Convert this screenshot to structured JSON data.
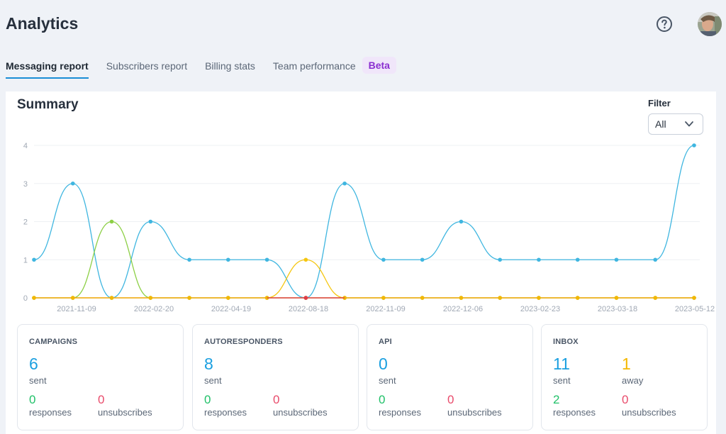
{
  "header": {
    "title": "Analytics",
    "help_icon": "question-circle-icon",
    "avatar_icon": "user-avatar"
  },
  "tabs": [
    {
      "label": "Messaging report",
      "active": true
    },
    {
      "label": "Subscribers report",
      "active": false
    },
    {
      "label": "Billing stats",
      "active": false
    },
    {
      "label": "Team performance",
      "active": false
    }
  ],
  "beta_badge": "Beta",
  "summary": {
    "title": "Summary",
    "filter": {
      "label": "Filter",
      "value": "All"
    }
  },
  "colors": {
    "campaigns": "#3fb6e0",
    "autoresponders": "#8ccf45",
    "api": "#f5c60f",
    "inbox": "#f2b705",
    "unsub": "#e03b4a",
    "accent": "#1a8ed6",
    "beta": "#8a2fd0"
  },
  "chart_data": {
    "type": "line",
    "x_tick_labels": [
      "2021-11-09",
      "2022-02-20",
      "2022-04-19",
      "2022-08-18",
      "2022-11-09",
      "2022-12-06",
      "2023-02-23",
      "2023-03-18",
      "2023-05-12"
    ],
    "ylim": [
      0,
      4
    ],
    "yticks": [
      0,
      1,
      2,
      3,
      4
    ],
    "grid": true,
    "point_count": 18,
    "series": [
      {
        "values": [
          1,
          3,
          0,
          2,
          1,
          1,
          1,
          0,
          3,
          1,
          1,
          2,
          1,
          1,
          1,
          1,
          1,
          4
        ],
        "color": "#3fb6e0"
      },
      {
        "values": [
          0,
          0,
          2,
          0,
          0,
          0,
          0,
          0,
          0,
          0,
          0,
          0,
          0,
          0,
          0,
          0,
          0,
          0
        ],
        "color": "#8ccf45"
      },
      {
        "values": [
          0,
          0,
          0,
          0,
          0,
          0,
          0,
          1,
          0,
          0,
          0,
          0,
          0,
          0,
          0,
          0,
          0,
          0
        ],
        "color": "#f5c60f"
      },
      {
        "values": [
          0,
          0,
          0,
          0,
          0,
          0,
          0,
          0,
          0,
          0,
          0,
          0,
          0,
          0,
          0,
          0,
          0,
          0
        ],
        "color": "#e03b4a"
      },
      {
        "values": [
          0,
          0,
          0,
          0,
          0,
          0,
          0,
          0,
          0,
          0,
          0,
          0,
          0,
          0,
          0,
          0,
          0,
          0
        ],
        "color": "#f2b705"
      }
    ]
  },
  "stats": [
    {
      "title": "CAMPAIGNS",
      "main": [
        {
          "value": "6",
          "label": "sent"
        }
      ],
      "sub": [
        {
          "value": "0",
          "label": "responses"
        },
        {
          "value": "0",
          "label": "unsubscribes"
        }
      ]
    },
    {
      "title": "AUTORESPONDERS",
      "main": [
        {
          "value": "8",
          "label": "sent"
        }
      ],
      "sub": [
        {
          "value": "0",
          "label": "responses"
        },
        {
          "value": "0",
          "label": "unsubscribes"
        }
      ]
    },
    {
      "title": "API",
      "main": [
        {
          "value": "0",
          "label": "sent"
        }
      ],
      "sub": [
        {
          "value": "0",
          "label": "responses"
        },
        {
          "value": "0",
          "label": "unsubscribes"
        }
      ]
    },
    {
      "title": "INBOX",
      "main": [
        {
          "value": "11",
          "label": "sent"
        },
        {
          "value": "1",
          "label": "away"
        }
      ],
      "sub": [
        {
          "value": "2",
          "label": "responses"
        },
        {
          "value": "0",
          "label": "unsubscribes"
        }
      ]
    }
  ]
}
